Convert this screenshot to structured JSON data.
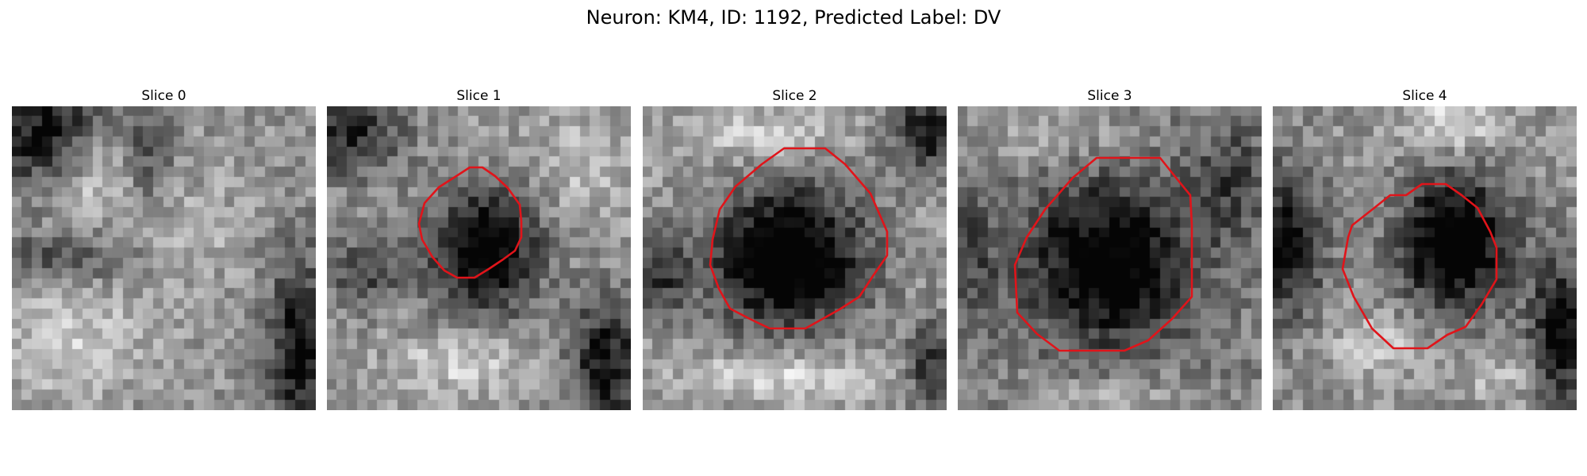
{
  "figure": {
    "title": "Neuron: KM4, ID: 1192, Predicted Label: DV"
  },
  "panels": [
    {
      "title": "Slice 0",
      "has_contour": false
    },
    {
      "title": "Slice 1",
      "has_contour": true
    },
    {
      "title": "Slice 2",
      "has_contour": true
    },
    {
      "title": "Slice 3",
      "has_contour": true
    },
    {
      "title": "Slice 4",
      "has_contour": true
    }
  ],
  "colors": {
    "contour": "#e0141a",
    "background": "#ffffff"
  },
  "image_style": {
    "colormap": "grayscale",
    "grid_size": 30
  }
}
